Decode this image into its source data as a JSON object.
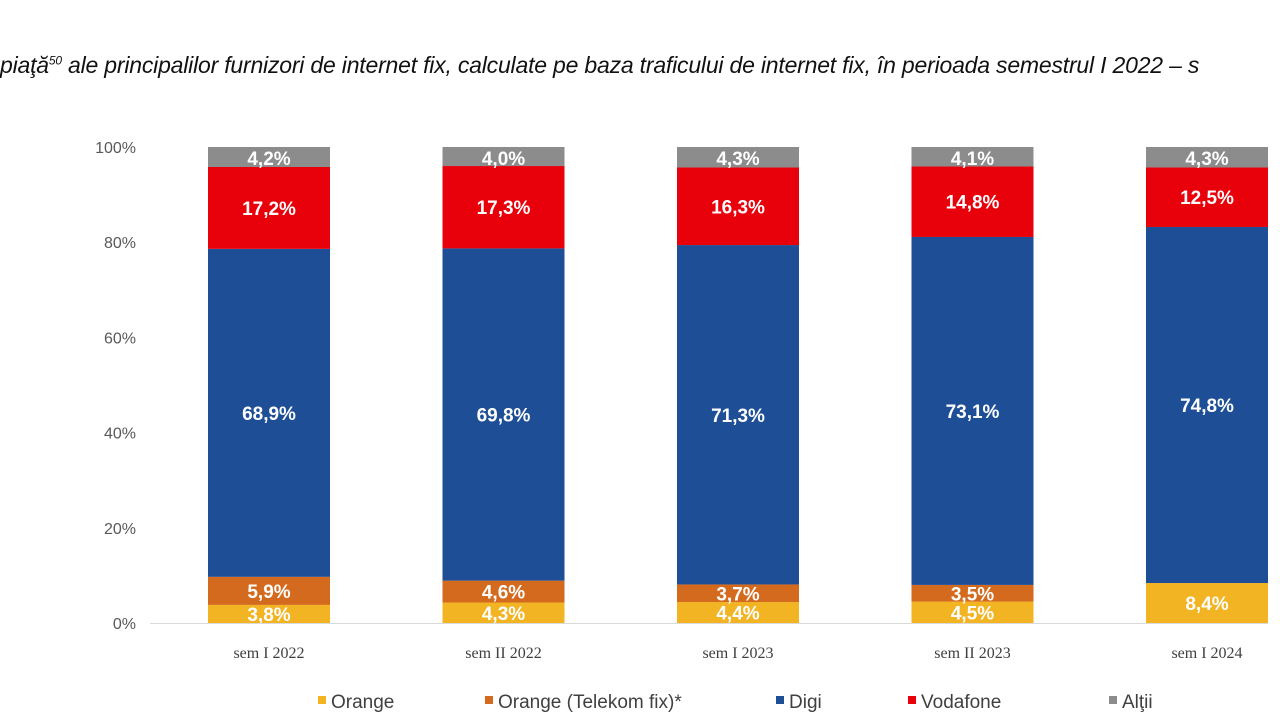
{
  "title_text": "piaţă",
  "title_footnote": "50",
  "title_rest": " ale principalilor furnizori de internet fix, calculate pe baza traficului de internet fix, în perioada semestrul I 2022 – s",
  "chart_data": {
    "type": "bar",
    "stacked": true,
    "categories": [
      "sem I 2022",
      "sem II 2022",
      "sem I 2023",
      "sem II 2023",
      "sem I 2024"
    ],
    "series": [
      {
        "name": "Orange",
        "color": "#F2B423",
        "values": [
          3.8,
          4.3,
          4.4,
          4.5,
          8.4
        ],
        "labels": [
          "3,8%",
          "4,3%",
          "4,4%",
          "4,5%",
          "8,4%"
        ]
      },
      {
        "name": "Orange (Telekom fix)*",
        "color": "#D46A1E",
        "values": [
          5.9,
          4.6,
          3.7,
          3.5,
          0
        ],
        "labels": [
          "5,9%",
          "4,6%",
          "3,7%",
          "3,5%",
          ""
        ]
      },
      {
        "name": "Digi",
        "color": "#1D4E96",
        "values": [
          68.9,
          69.8,
          71.3,
          73.1,
          74.8
        ],
        "labels": [
          "68,9%",
          "69,8%",
          "71,3%",
          "73,1%",
          "74,8%"
        ]
      },
      {
        "name": "Vodafone",
        "color": "#E8000B",
        "values": [
          17.2,
          17.3,
          16.3,
          14.8,
          12.5
        ],
        "labels": [
          "17,2%",
          "17,3%",
          "16,3%",
          "14,8%",
          "12,5%"
        ]
      },
      {
        "name": "Alţii",
        "color": "#8C8C8C",
        "values": [
          4.2,
          4.0,
          4.3,
          4.1,
          4.3
        ],
        "labels": [
          "4,2%",
          "4,0%",
          "4,3%",
          "4,1%",
          "4,3%"
        ]
      }
    ],
    "yticks": [
      "0%",
      "20%",
      "40%",
      "60%",
      "80%",
      "100%"
    ],
    "ylim": [
      0,
      100
    ],
    "grid": false,
    "legend": "bottom"
  }
}
